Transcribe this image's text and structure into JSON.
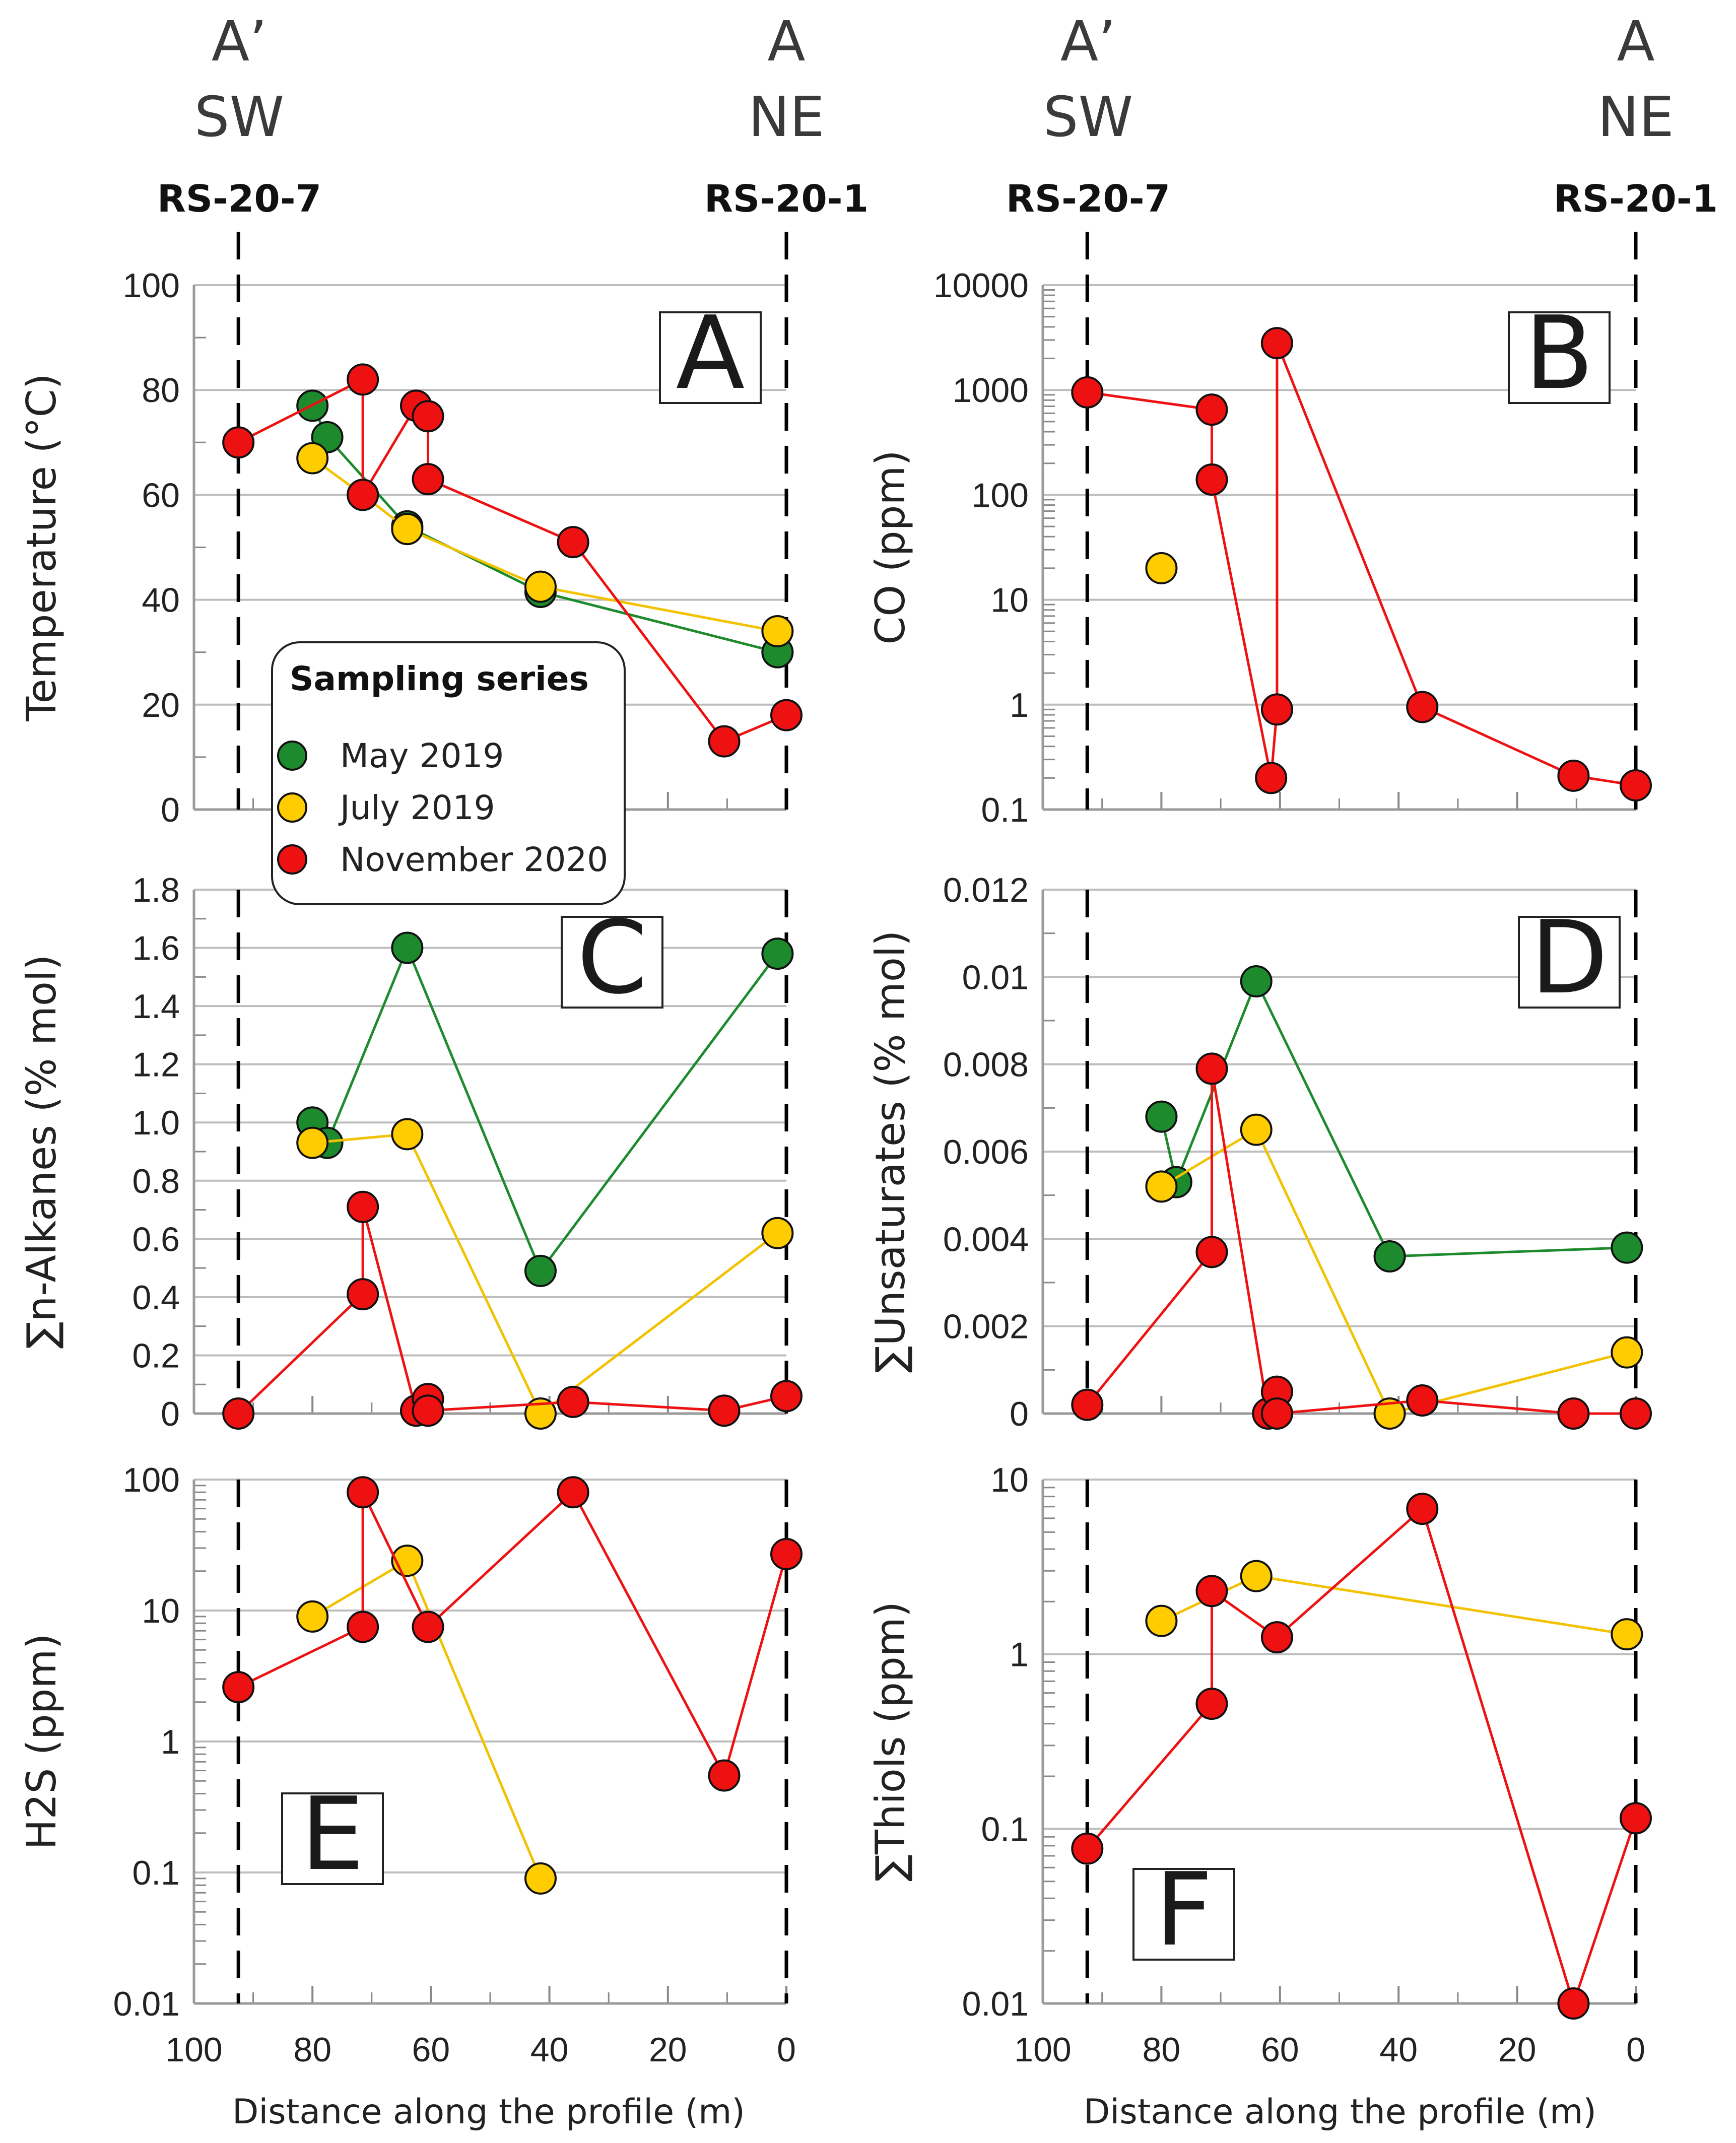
{
  "header": {
    "left": {
      "letter": "A’",
      "direction": "SW",
      "well": "RS-20-7"
    },
    "right": {
      "letter": "A",
      "direction": "NE",
      "well": "RS-20-1"
    }
  },
  "legend": {
    "title": "Sampling series",
    "items": [
      {
        "label": "May 2019",
        "color": "#1e8a2e"
      },
      {
        "label": "July 2019",
        "color": "#ffcc00"
      },
      {
        "label": "November 2020",
        "color": "#ee1111"
      }
    ]
  },
  "x_axis_title": "Distance along the profile (m)",
  "chart_data": [
    {
      "panel": "A",
      "type": "line",
      "ylabel": "Temperature (°C)",
      "yscale": "linear",
      "ylim": [
        0,
        100
      ],
      "yticks": [
        "0",
        "20",
        "40",
        "60",
        "80",
        "100"
      ],
      "xlim": [
        100,
        0
      ],
      "xticks": [
        "100",
        "80",
        "60",
        "40",
        "20",
        "0"
      ],
      "series": [
        {
          "name": "May 2019",
          "x": [
            80,
            77.5,
            64,
            41.5,
            1.5
          ],
          "y": [
            77,
            71,
            54,
            41.5,
            30
          ]
        },
        {
          "name": "July 2019",
          "x": [
            80,
            71.5,
            64,
            41.5,
            1.5
          ],
          "y": [
            67,
            60,
            53.5,
            42.5,
            34
          ]
        },
        {
          "name": "November 2020",
          "x": [
            92.5,
            71.5,
            71.5,
            62.5,
            60.5,
            60.5,
            36,
            10.5,
            0
          ],
          "y": [
            70,
            82,
            60,
            77,
            75,
            63,
            51,
            13,
            18
          ]
        }
      ]
    },
    {
      "panel": "B",
      "type": "line",
      "ylabel": "CO (ppm)",
      "yscale": "log",
      "ylim": [
        0.1,
        10000
      ],
      "yticks": [
        "0.1",
        "1",
        "10",
        "100",
        "1000",
        "10000"
      ],
      "xlim": [
        100,
        0
      ],
      "xticks": [
        "100",
        "80",
        "60",
        "40",
        "20",
        "0"
      ],
      "series": [
        {
          "name": "July 2019",
          "x": [
            80
          ],
          "y": [
            20
          ]
        },
        {
          "name": "November 2020",
          "x": [
            92.5,
            71.5,
            71.5,
            61.5,
            60.5,
            60.5,
            36,
            10.5,
            0
          ],
          "y": [
            950,
            650,
            140,
            0.2,
            0.9,
            2800,
            0.95,
            0.21,
            0.17
          ]
        }
      ]
    },
    {
      "panel": "C",
      "type": "line",
      "ylabel": "∑n-Alkanes (% mol)",
      "yscale": "linear",
      "ylim": [
        0,
        1.8
      ],
      "yticks": [
        "0",
        "0.2",
        "0.4",
        "0.6",
        "0.8",
        "1.0",
        "1.2",
        "1.4",
        "1.6",
        "1.8"
      ],
      "xlim": [
        100,
        0
      ],
      "xticks": [
        "100",
        "80",
        "60",
        "40",
        "20",
        "0"
      ],
      "series": [
        {
          "name": "May 2019",
          "x": [
            80,
            77.5,
            64,
            41.5,
            1.5
          ],
          "y": [
            1.0,
            0.93,
            1.6,
            0.49,
            1.58
          ]
        },
        {
          "name": "July 2019",
          "x": [
            80,
            64,
            41.5,
            1.5
          ],
          "y": [
            0.93,
            0.96,
            0.0,
            0.62
          ]
        },
        {
          "name": "November 2020",
          "x": [
            92.5,
            71.5,
            71.5,
            62.5,
            60.5,
            60.5,
            36,
            10.5,
            0
          ],
          "y": [
            0.0,
            0.41,
            0.71,
            0.01,
            0.05,
            0.01,
            0.04,
            0.01,
            0.06
          ]
        }
      ]
    },
    {
      "panel": "D",
      "type": "line",
      "ylabel": "∑Unsaturates (% mol)",
      "yscale": "linear",
      "ylim": [
        0,
        0.012
      ],
      "yticks": [
        "0",
        "0.002",
        "0.004",
        "0.006",
        "0.008",
        "0.01",
        "0.012"
      ],
      "xlim": [
        100,
        0
      ],
      "xticks": [
        "100",
        "80",
        "60",
        "40",
        "20",
        "0"
      ],
      "series": [
        {
          "name": "May 2019",
          "x": [
            80,
            77.5,
            64,
            41.5,
            1.5
          ],
          "y": [
            0.0068,
            0.0053,
            0.0099,
            0.0036,
            0.0038
          ]
        },
        {
          "name": "July 2019",
          "x": [
            80,
            64,
            41.5,
            1.5
          ],
          "y": [
            0.0052,
            0.0065,
            0.0,
            0.0014
          ]
        },
        {
          "name": "November 2020",
          "x": [
            92.5,
            71.5,
            71.5,
            62,
            60.5,
            60.5,
            36,
            10.5,
            0
          ],
          "y": [
            0.0002,
            0.0037,
            0.0079,
            0.0,
            0.0005,
            0.0,
            0.0003,
            0.0,
            0.0
          ]
        }
      ]
    },
    {
      "panel": "E",
      "type": "line",
      "ylabel": "H2S (ppm)",
      "yscale": "log",
      "ylim": [
        0.01,
        100
      ],
      "yticks": [
        "0.01",
        "0.1",
        "1",
        "10",
        "100"
      ],
      "xlim": [
        100,
        0
      ],
      "xticks": [
        "100",
        "80",
        "60",
        "40",
        "20",
        "0"
      ],
      "series": [
        {
          "name": "July 2019",
          "x": [
            80,
            64,
            41.5
          ],
          "y": [
            9,
            24,
            0.09
          ]
        },
        {
          "name": "November 2020",
          "x": [
            92.5,
            71.5,
            71.5,
            60.5,
            36,
            10.5,
            0
          ],
          "y": [
            2.6,
            7.5,
            80,
            7.5,
            80,
            0.55,
            27
          ]
        }
      ]
    },
    {
      "panel": "F",
      "type": "line",
      "ylabel": "∑Thiols (ppm)",
      "yscale": "log",
      "ylim": [
        0.01,
        10
      ],
      "yticks": [
        "0.01",
        "0.1",
        "1",
        "10"
      ],
      "xlim": [
        100,
        0
      ],
      "xticks": [
        "100",
        "80",
        "60",
        "40",
        "20",
        "0"
      ],
      "series": [
        {
          "name": "July 2019",
          "x": [
            80,
            64,
            1.5
          ],
          "y": [
            1.55,
            2.8,
            1.3
          ]
        },
        {
          "name": "November 2020",
          "x": [
            92.5,
            71.5,
            71.5,
            60.5,
            36,
            10.5,
            0
          ],
          "y": [
            0.077,
            0.52,
            2.3,
            1.25,
            6.8,
            0.01,
            0.115
          ]
        }
      ]
    }
  ]
}
